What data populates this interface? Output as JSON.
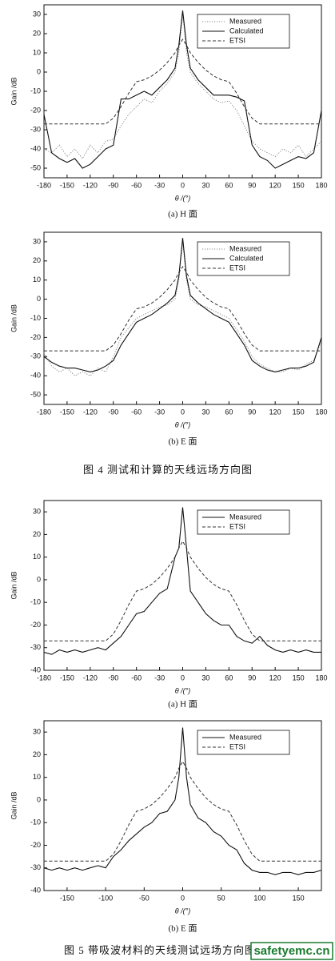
{
  "figure_captions": [
    "图 4 测试和计算的天线远场方向图",
    "图 5 带吸波材料的天线测试远场方向图"
  ],
  "watermark": "safetyemc.cn",
  "chart_data": [
    {
      "type": "line",
      "caption": "(a) H 面",
      "x_label": "θ /(°)",
      "y_label": "Gain /dB",
      "xlim": [
        -180,
        180
      ],
      "xticks": [
        -180,
        -150,
        -120,
        -90,
        -60,
        -30,
        0,
        30,
        60,
        90,
        120,
        150,
        180
      ],
      "ylim": [
        -55,
        35
      ],
      "yticks": [
        -50,
        -40,
        -30,
        -20,
        -10,
        0,
        10,
        20,
        30
      ],
      "legend": "upper right",
      "x": [
        -180,
        -170,
        -160,
        -150,
        -140,
        -130,
        -120,
        -110,
        -100,
        -90,
        -80,
        -70,
        -60,
        -50,
        -40,
        -30,
        -20,
        -10,
        -5,
        0,
        5,
        10,
        20,
        30,
        40,
        50,
        60,
        70,
        80,
        90,
        100,
        110,
        120,
        130,
        140,
        150,
        160,
        170,
        180
      ],
      "series": [
        {
          "name": "Measured",
          "color": "#888888",
          "dash": "dotted",
          "values": [
            -40,
            -42,
            -38,
            -44,
            -40,
            -45,
            -38,
            -42,
            -36,
            -35,
            -28,
            -22,
            -18,
            -14,
            -16,
            -10,
            -6,
            0,
            10,
            30,
            10,
            0,
            -6,
            -10,
            -14,
            -16,
            -15,
            -20,
            -28,
            -36,
            -40,
            -42,
            -44,
            -40,
            -42,
            -38,
            -44,
            -40,
            -36
          ]
        },
        {
          "name": "Calculated",
          "color": "#111111",
          "dash": "solid",
          "values": [
            -22,
            -42,
            -45,
            -47,
            -45,
            -50,
            -48,
            -44,
            -40,
            -38,
            -14,
            -14,
            -12,
            -10,
            -12,
            -8,
            -4,
            2,
            14,
            32,
            14,
            2,
            -4,
            -8,
            -12,
            -12,
            -12,
            -13,
            -15,
            -38,
            -44,
            -46,
            -50,
            -48,
            -46,
            -44,
            -45,
            -42,
            -20
          ]
        },
        {
          "name": "ETSI",
          "color": "#333333",
          "dash": "dashed",
          "values": [
            -27,
            -27,
            -27,
            -27,
            -27,
            -27,
            -27,
            -27,
            -27,
            -24,
            -18,
            -11,
            -5,
            -4,
            -2,
            1,
            5,
            10,
            14,
            17,
            14,
            10,
            5,
            1,
            -2,
            -4,
            -5,
            -11,
            -18,
            -24,
            -27,
            -27,
            -27,
            -27,
            -27,
            -27,
            -27,
            -27,
            -27
          ]
        }
      ]
    },
    {
      "type": "line",
      "caption": "(b) E 面",
      "x_label": "θ /(°)",
      "y_label": "Gain /dB",
      "xlim": [
        -180,
        180
      ],
      "xticks": [
        -180,
        -150,
        -120,
        -90,
        -60,
        -30,
        0,
        30,
        60,
        90,
        120,
        150,
        180
      ],
      "ylim": [
        -55,
        35
      ],
      "yticks": [
        -50,
        -40,
        -30,
        -20,
        -10,
        0,
        10,
        20,
        30
      ],
      "legend": "upper right",
      "x": [
        -180,
        -170,
        -160,
        -150,
        -140,
        -130,
        -120,
        -110,
        -100,
        -90,
        -80,
        -70,
        -60,
        -50,
        -40,
        -30,
        -20,
        -10,
        -5,
        0,
        5,
        10,
        20,
        30,
        40,
        50,
        60,
        70,
        80,
        90,
        100,
        110,
        120,
        130,
        140,
        150,
        160,
        170,
        180
      ],
      "series": [
        {
          "name": "Measured",
          "color": "#888888",
          "dash": "dotted",
          "values": [
            -28,
            -35,
            -38,
            -36,
            -40,
            -38,
            -40,
            -36,
            -38,
            -30,
            -20,
            -15,
            -10,
            -8,
            -6,
            -4,
            -3,
            0,
            10,
            30,
            10,
            0,
            -3,
            -4,
            -6,
            -8,
            -10,
            -16,
            -22,
            -30,
            -34,
            -36,
            -38,
            -38,
            -36,
            -37,
            -34,
            -32,
            -22
          ]
        },
        {
          "name": "Calculated",
          "color": "#111111",
          "dash": "solid",
          "values": [
            -30,
            -33,
            -35,
            -36,
            -36,
            -37,
            -38,
            -37,
            -35,
            -32,
            -24,
            -18,
            -12,
            -10,
            -8,
            -5,
            -2,
            2,
            12,
            32,
            12,
            2,
            -2,
            -5,
            -8,
            -10,
            -12,
            -18,
            -24,
            -32,
            -35,
            -37,
            -38,
            -37,
            -36,
            -36,
            -35,
            -33,
            -20
          ]
        },
        {
          "name": "ETSI",
          "color": "#333333",
          "dash": "dashed",
          "values": [
            -27,
            -27,
            -27,
            -27,
            -27,
            -27,
            -27,
            -27,
            -27,
            -24,
            -18,
            -11,
            -5,
            -4,
            -2,
            1,
            5,
            10,
            14,
            17,
            14,
            10,
            5,
            1,
            -2,
            -4,
            -5,
            -11,
            -18,
            -24,
            -27,
            -27,
            -27,
            -27,
            -27,
            -27,
            -27,
            -27,
            -27
          ]
        }
      ]
    },
    {
      "type": "line",
      "caption": "(a) H 面",
      "x_label": "θ /(°)",
      "y_label": "Gain /dB",
      "xlim": [
        -180,
        180
      ],
      "xticks": [
        -180,
        -150,
        -120,
        -90,
        -60,
        -30,
        0,
        30,
        60,
        90,
        120,
        150,
        180
      ],
      "ylim": [
        -40,
        35
      ],
      "yticks": [
        -40,
        -30,
        -20,
        -10,
        0,
        10,
        20,
        30
      ],
      "legend": "upper right",
      "x": [
        -180,
        -170,
        -160,
        -150,
        -140,
        -130,
        -120,
        -110,
        -100,
        -90,
        -80,
        -70,
        -60,
        -50,
        -40,
        -30,
        -20,
        -10,
        -5,
        0,
        5,
        10,
        20,
        30,
        40,
        50,
        60,
        70,
        80,
        90,
        100,
        110,
        120,
        130,
        140,
        150,
        160,
        170,
        180
      ],
      "series": [
        {
          "name": "Measured",
          "color": "#111111",
          "dash": "solid",
          "values": [
            -32,
            -33,
            -31,
            -32,
            -31,
            -32,
            -31,
            -30,
            -31,
            -28,
            -25,
            -20,
            -15,
            -14,
            -10,
            -6,
            -4,
            10,
            14,
            32,
            14,
            -5,
            -10,
            -15,
            -18,
            -20,
            -20,
            -25,
            -27,
            -28,
            -25,
            -29,
            -31,
            -32,
            -31,
            -32,
            -31,
            -32,
            -32
          ]
        },
        {
          "name": "ETSI",
          "color": "#333333",
          "dash": "dashed",
          "values": [
            -27,
            -27,
            -27,
            -27,
            -27,
            -27,
            -27,
            -27,
            -27,
            -24,
            -18,
            -11,
            -5,
            -4,
            -2,
            1,
            5,
            10,
            14,
            17,
            14,
            10,
            5,
            1,
            -2,
            -4,
            -5,
            -11,
            -18,
            -24,
            -27,
            -27,
            -27,
            -27,
            -27,
            -27,
            -27,
            -27,
            -27
          ]
        }
      ]
    },
    {
      "type": "line",
      "caption": "(b) E 面",
      "x_label": "θ /(°)",
      "y_label": "Gain /dB",
      "xlim": [
        -180,
        180
      ],
      "xticks": [
        -150,
        -100,
        -50,
        0,
        50,
        100,
        150
      ],
      "ylim": [
        -40,
        35
      ],
      "yticks": [
        -40,
        -30,
        -20,
        -10,
        0,
        10,
        20,
        30
      ],
      "legend": "upper right",
      "x": [
        -180,
        -170,
        -160,
        -150,
        -140,
        -130,
        -120,
        -110,
        -100,
        -90,
        -80,
        -70,
        -60,
        -50,
        -40,
        -30,
        -20,
        -10,
        -5,
        0,
        5,
        10,
        20,
        30,
        40,
        50,
        60,
        70,
        80,
        90,
        100,
        110,
        120,
        130,
        140,
        150,
        160,
        170,
        180
      ],
      "series": [
        {
          "name": "Measured",
          "color": "#111111",
          "dash": "solid",
          "values": [
            -30,
            -31,
            -30,
            -31,
            -30,
            -31,
            -30,
            -29,
            -30,
            -25,
            -22,
            -18,
            -15,
            -12,
            -10,
            -6,
            -5,
            0,
            10,
            32,
            10,
            -2,
            -8,
            -10,
            -14,
            -16,
            -20,
            -22,
            -28,
            -31,
            -32,
            -32,
            -33,
            -32,
            -32,
            -33,
            -32,
            -32,
            -31
          ]
        },
        {
          "name": "ETSI",
          "color": "#333333",
          "dash": "dashed",
          "values": [
            -27,
            -27,
            -27,
            -27,
            -27,
            -27,
            -27,
            -27,
            -27,
            -24,
            -18,
            -11,
            -5,
            -4,
            -2,
            1,
            5,
            10,
            14,
            17,
            14,
            10,
            5,
            1,
            -2,
            -4,
            -5,
            -11,
            -18,
            -24,
            -27,
            -27,
            -27,
            -27,
            -27,
            -27,
            -27,
            -27,
            -27
          ]
        }
      ]
    }
  ]
}
